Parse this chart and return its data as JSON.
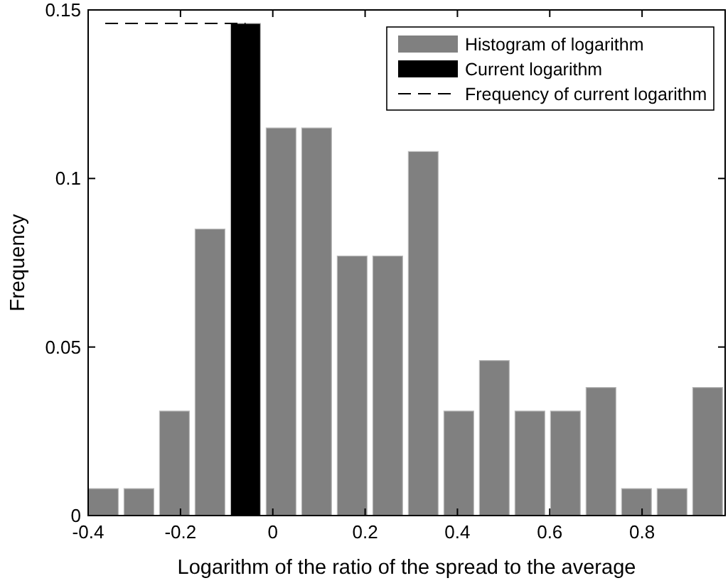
{
  "chart_data": {
    "type": "bar",
    "xlabel": "Logarithm of the ratio of the spread to the average",
    "ylabel": "Frequency",
    "x": [
      -0.367,
      -0.29,
      -0.213,
      -0.136,
      -0.059,
      0.018,
      0.095,
      0.172,
      0.249,
      0.326,
      0.403,
      0.48,
      0.557,
      0.634,
      0.711,
      0.788,
      0.865,
      0.942
    ],
    "series": [
      {
        "name": "Histogram of logarithm",
        "color": "#808080",
        "values": [
          0.008,
          0.008,
          0.031,
          0.085,
          null,
          0.115,
          0.115,
          0.077,
          0.077,
          0.108,
          0.031,
          0.046,
          0.031,
          0.031,
          0.038,
          0.008,
          0.008,
          0.038
        ]
      },
      {
        "name": "Current logarithm",
        "color": "#000000",
        "values": [
          null,
          null,
          null,
          null,
          0.146,
          null,
          null,
          null,
          null,
          null,
          null,
          null,
          null,
          null,
          null,
          null,
          null,
          null
        ]
      },
      {
        "name": "Frequency of current logarithm",
        "type": "line",
        "line_style": "dashed",
        "color": "#000000",
        "x": [
          -0.363,
          -0.059
        ],
        "values": [
          0.146,
          0.146
        ]
      }
    ],
    "xlim": [
      -0.4,
      0.98
    ],
    "xticks": [
      -0.4,
      -0.2,
      0,
      0.2,
      0.4,
      0.6,
      0.8
    ],
    "ylim": [
      0,
      0.15
    ],
    "yticks": [
      0,
      0.05,
      0.1,
      0.15
    ],
    "legend": "top right",
    "grid": false
  }
}
